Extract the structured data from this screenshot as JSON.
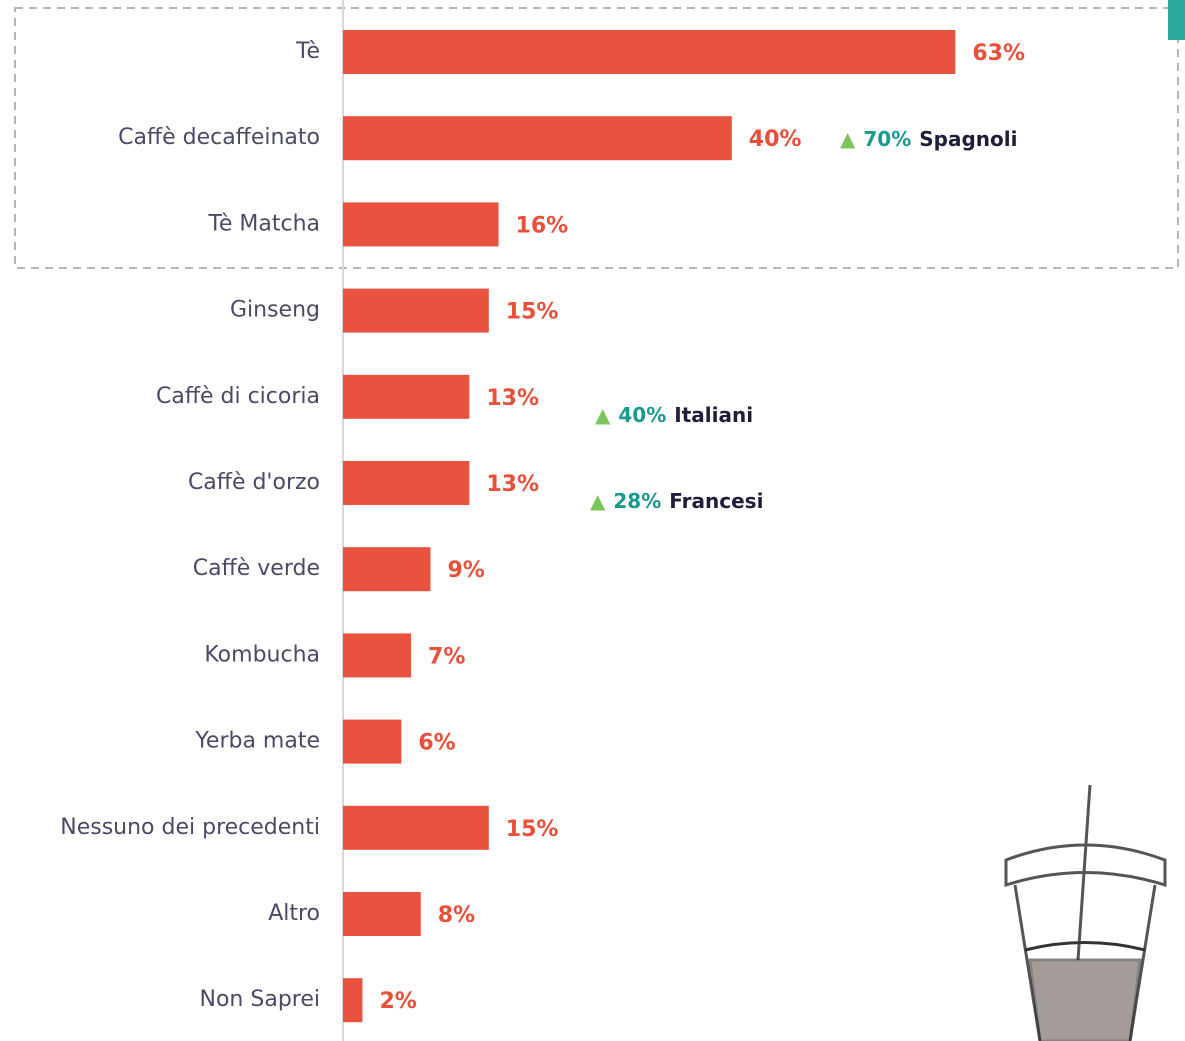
{
  "chart_data": {
    "type": "bar",
    "orientation": "horizontal",
    "color": "#e8523f",
    "categories": [
      "Tè",
      "Caffè decaffeinato",
      "Tè Matcha",
      "Ginseng",
      "Caffè di cicoria",
      "Caffè d'orzo",
      "Caffè verde",
      "Kombucha",
      "Yerba mate",
      "Nessuno dei precedenti",
      "Altro",
      "Non  Saprei"
    ],
    "values": [
      63,
      40,
      16,
      15,
      13,
      13,
      9,
      7,
      6,
      15,
      8,
      2
    ],
    "value_labels": [
      "63%",
      "40%",
      "16%",
      "15%",
      "13%",
      "13%",
      "9%",
      "7%",
      "6%",
      "15%",
      "8%",
      "2%"
    ],
    "annotations": [
      {
        "marker": "▲",
        "pct": "70%",
        "group": "Spagnoli"
      },
      {
        "marker": "▲",
        "pct": "40%",
        "group": "Italiani"
      },
      {
        "marker": "▲",
        "pct": "28%",
        "group": "Francesi"
      }
    ]
  }
}
